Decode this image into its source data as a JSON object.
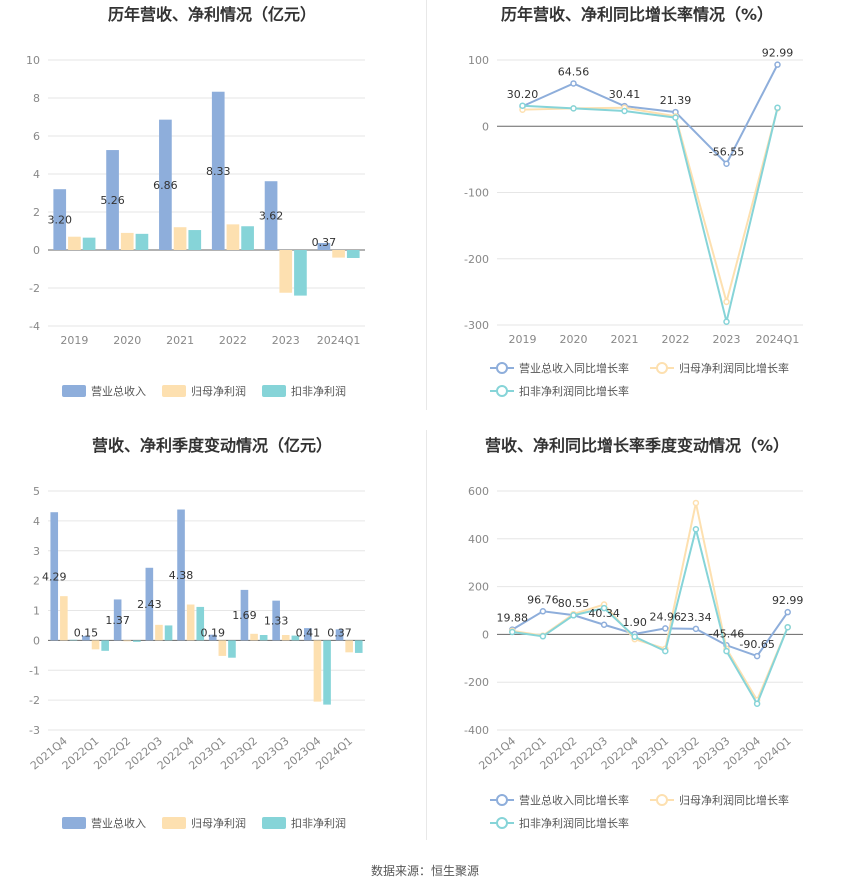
{
  "source_label": "数据来源：恒生聚源",
  "chart_data": [
    {
      "type": "bar",
      "title": "历年营收、净利情况（亿元）",
      "categories": [
        "2019",
        "2020",
        "2021",
        "2022",
        "2023",
        "2024Q1"
      ],
      "ylim": [
        -4,
        10
      ],
      "yticks": [
        -4,
        -2,
        0,
        2,
        4,
        6,
        8,
        10
      ],
      "series": [
        {
          "name": "营业总收入",
          "color": "#8eaedb",
          "values": [
            3.2,
            5.26,
            6.86,
            8.33,
            3.62,
            0.37
          ]
        },
        {
          "name": "归母净利润",
          "color": "#fde0b0",
          "values": [
            0.7,
            0.9,
            1.2,
            1.35,
            -2.25,
            -0.4
          ]
        },
        {
          "name": "扣非净利润",
          "color": "#86d4d8",
          "values": [
            0.65,
            0.85,
            1.05,
            1.25,
            -2.4,
            -0.42
          ]
        }
      ],
      "labels": [
        "3.20",
        "5.26",
        "6.86",
        "8.33",
        "3.62",
        "0.37"
      ]
    },
    {
      "type": "line",
      "title": "历年营收、净利同比增长率情况（%）",
      "categories": [
        "2019",
        "2020",
        "2021",
        "2022",
        "2023",
        "2024Q1"
      ],
      "ylim": [
        -300,
        100
      ],
      "yticks": [
        -300,
        -200,
        -100,
        0,
        100
      ],
      "series": [
        {
          "name": "营业总收入同比增长率",
          "color": "#8eaedb",
          "values": [
            30.2,
            64.56,
            30.41,
            21.39,
            -56.55,
            92.99
          ]
        },
        {
          "name": "归母净利润同比增长率",
          "color": "#fde0b0",
          "values": [
            25,
            27,
            28,
            15,
            -265,
            27
          ]
        },
        {
          "name": "扣非净利润同比增长率",
          "color": "#86d4d8",
          "values": [
            31,
            27,
            23,
            13,
            -295,
            28
          ]
        }
      ],
      "labels": [
        "30.20",
        "64.56",
        "30.41",
        "21.39",
        "-56.55",
        "92.99"
      ]
    },
    {
      "type": "bar",
      "title": "营收、净利季度变动情况（亿元）",
      "categories": [
        "2021Q4",
        "2022Q1",
        "2022Q2",
        "2022Q3",
        "2022Q4",
        "2023Q1",
        "2023Q2",
        "2023Q3",
        "2023Q4",
        "2024Q1"
      ],
      "ylim": [
        -3,
        5
      ],
      "yticks": [
        -3,
        -2,
        -1,
        0,
        1,
        2,
        3,
        4,
        5
      ],
      "series": [
        {
          "name": "营业总收入",
          "color": "#8eaedb",
          "values": [
            4.29,
            0.15,
            1.37,
            2.43,
            4.38,
            0.19,
            1.69,
            1.33,
            0.41,
            0.37
          ]
        },
        {
          "name": "归母净利润",
          "color": "#fde0b0",
          "values": [
            1.48,
            -0.3,
            -0.03,
            0.52,
            1.2,
            -0.52,
            0.22,
            0.18,
            -2.05,
            -0.4
          ]
        },
        {
          "name": "扣非净利润",
          "color": "#86d4d8",
          "values": [
            0.02,
            -0.35,
            -0.05,
            0.5,
            1.12,
            -0.58,
            0.18,
            0.16,
            -2.15,
            -0.42
          ]
        }
      ],
      "labels": [
        "4.29",
        "0.15",
        "1.37",
        "2.43",
        "4.38",
        "0.19",
        "1.69",
        "1.33",
        "0.41",
        "0.37"
      ]
    },
    {
      "type": "line",
      "title": "营收、净利同比增长率季度变动情况（%）",
      "categories": [
        "2021Q4",
        "2022Q1",
        "2022Q2",
        "2022Q3",
        "2022Q4",
        "2023Q1",
        "2023Q2",
        "2023Q3",
        "2023Q4",
        "2024Q1"
      ],
      "ylim": [
        -400,
        600
      ],
      "yticks": [
        -400,
        -200,
        0,
        200,
        400,
        600
      ],
      "series": [
        {
          "name": "营业总收入同比增长率",
          "color": "#8eaedb",
          "values": [
            19.88,
            96.76,
            80.55,
            40.34,
            1.9,
            24.96,
            23.34,
            -45.46,
            -90.65,
            92.99
          ]
        },
        {
          "name": "归母净利润同比增长率",
          "color": "#fde0b0",
          "values": [
            15,
            -5,
            85,
            125,
            -20,
            -60,
            550,
            -60,
            -275,
            30
          ]
        },
        {
          "name": "扣非净利润同比增长率",
          "color": "#86d4d8",
          "values": [
            10,
            -8,
            80,
            110,
            -10,
            -70,
            440,
            -70,
            -290,
            30
          ]
        }
      ],
      "labels": [
        "19.88",
        "96.76",
        "80.55",
        "40.34",
        "1.90",
        "24.96",
        "23.34",
        "-45.46",
        "-90.65",
        "92.99"
      ]
    }
  ]
}
